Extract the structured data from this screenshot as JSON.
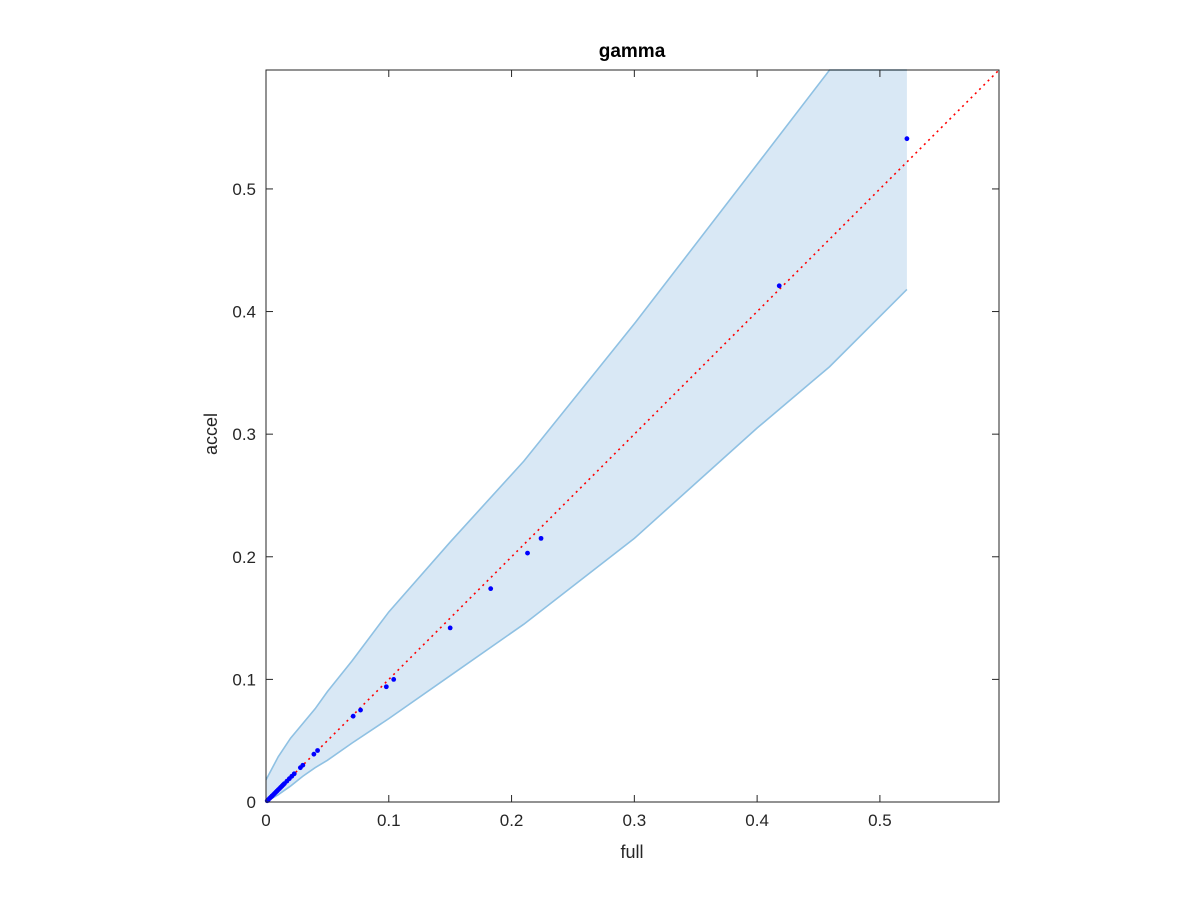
{
  "chart_data": {
    "type": "scatter",
    "title": "gamma",
    "xlabel": "full",
    "ylabel": "accel",
    "xlim": [
      0,
      0.597
    ],
    "ylim": [
      0,
      0.597
    ],
    "xticks": [
      0,
      0.1,
      0.2,
      0.3,
      0.4,
      0.5
    ],
    "yticks": [
      0,
      0.1,
      0.2,
      0.3,
      0.4,
      0.5
    ],
    "xtick_labels": [
      "0",
      "0.1",
      "0.2",
      "0.3",
      "0.4",
      "0.5"
    ],
    "ytick_labels": [
      "0",
      "0.1",
      "0.2",
      "0.3",
      "0.4",
      "0.5"
    ],
    "grid": false,
    "band": {
      "x": [
        0,
        0.01,
        0.02,
        0.03,
        0.04,
        0.05,
        0.07,
        0.1,
        0.15,
        0.21,
        0.3,
        0.4,
        0.459,
        0.522
      ],
      "upper": [
        0.018,
        0.037,
        0.052,
        0.064,
        0.076,
        0.09,
        0.115,
        0.155,
        0.212,
        0.278,
        0.39,
        0.52,
        0.597,
        0.597
      ],
      "lower": [
        0,
        0.006,
        0.013,
        0.021,
        0.028,
        0.034,
        0.048,
        0.068,
        0.103,
        0.145,
        0.215,
        0.305,
        0.355,
        0.418
      ]
    },
    "reference_line": {
      "x": [
        0,
        0.597
      ],
      "y": [
        0,
        0.597
      ]
    },
    "points": {
      "x": [
        0.001,
        0.002,
        0.003,
        0.004,
        0.005,
        0.006,
        0.007,
        0.008,
        0.009,
        0.01,
        0.011,
        0.012,
        0.013,
        0.014,
        0.015,
        0.017,
        0.019,
        0.021,
        0.023,
        0.028,
        0.03,
        0.039,
        0.042,
        0.071,
        0.077,
        0.098,
        0.104,
        0.15,
        0.183,
        0.213,
        0.224,
        0.418,
        0.522
      ],
      "y": [
        0.001,
        0.002,
        0.003,
        0.004,
        0.005,
        0.006,
        0.007,
        0.008,
        0.009,
        0.01,
        0.011,
        0.012,
        0.013,
        0.014,
        0.015,
        0.017,
        0.019,
        0.021,
        0.023,
        0.028,
        0.03,
        0.039,
        0.042,
        0.07,
        0.075,
        0.094,
        0.1,
        0.142,
        0.174,
        0.203,
        0.215,
        0.421,
        0.541
      ]
    },
    "colors": {
      "band_fill": "#d9e8f5",
      "band_edge": "#8fc1e3",
      "points": "#0000ff",
      "reference_line": "#ff0000",
      "axes": "#262626"
    }
  }
}
